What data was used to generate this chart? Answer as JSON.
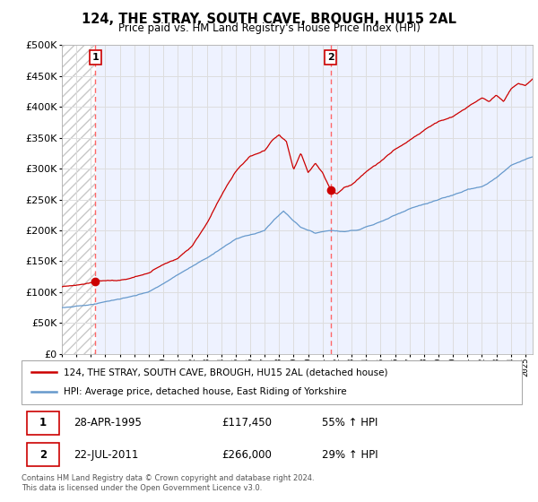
{
  "title": "124, THE STRAY, SOUTH CAVE, BROUGH, HU15 2AL",
  "subtitle": "Price paid vs. HM Land Registry's House Price Index (HPI)",
  "legend_line1": "124, THE STRAY, SOUTH CAVE, BROUGH, HU15 2AL (detached house)",
  "legend_line2": "HPI: Average price, detached house, East Riding of Yorkshire",
  "footnote": "Contains HM Land Registry data © Crown copyright and database right 2024.\nThis data is licensed under the Open Government Licence v3.0.",
  "sale1_label": "1",
  "sale1_date": "28-APR-1995",
  "sale1_price": "£117,450",
  "sale1_hpi": "55% ↑ HPI",
  "sale1_year": 1995.32,
  "sale1_value": 117450,
  "sale2_label": "2",
  "sale2_date": "22-JUL-2011",
  "sale2_price": "£266,000",
  "sale2_hpi": "29% ↑ HPI",
  "sale2_year": 2011.55,
  "sale2_value": 266000,
  "ylim": [
    0,
    500000
  ],
  "yticks": [
    0,
    50000,
    100000,
    150000,
    200000,
    250000,
    300000,
    350000,
    400000,
    450000,
    500000
  ],
  "xmin": 1993.0,
  "xmax": 2025.5,
  "hatch_xmax": 1995.32,
  "red_color": "#cc0000",
  "blue_color": "#6699cc",
  "grid_color": "#dddddd",
  "background_plot": "#eef2ff",
  "sale_dot_color": "#cc0000",
  "dashed_line_color": "#ff6666",
  "table_border_color": "#cc0000",
  "legend_border_color": "#aaaaaa",
  "footnote_color": "#555555"
}
